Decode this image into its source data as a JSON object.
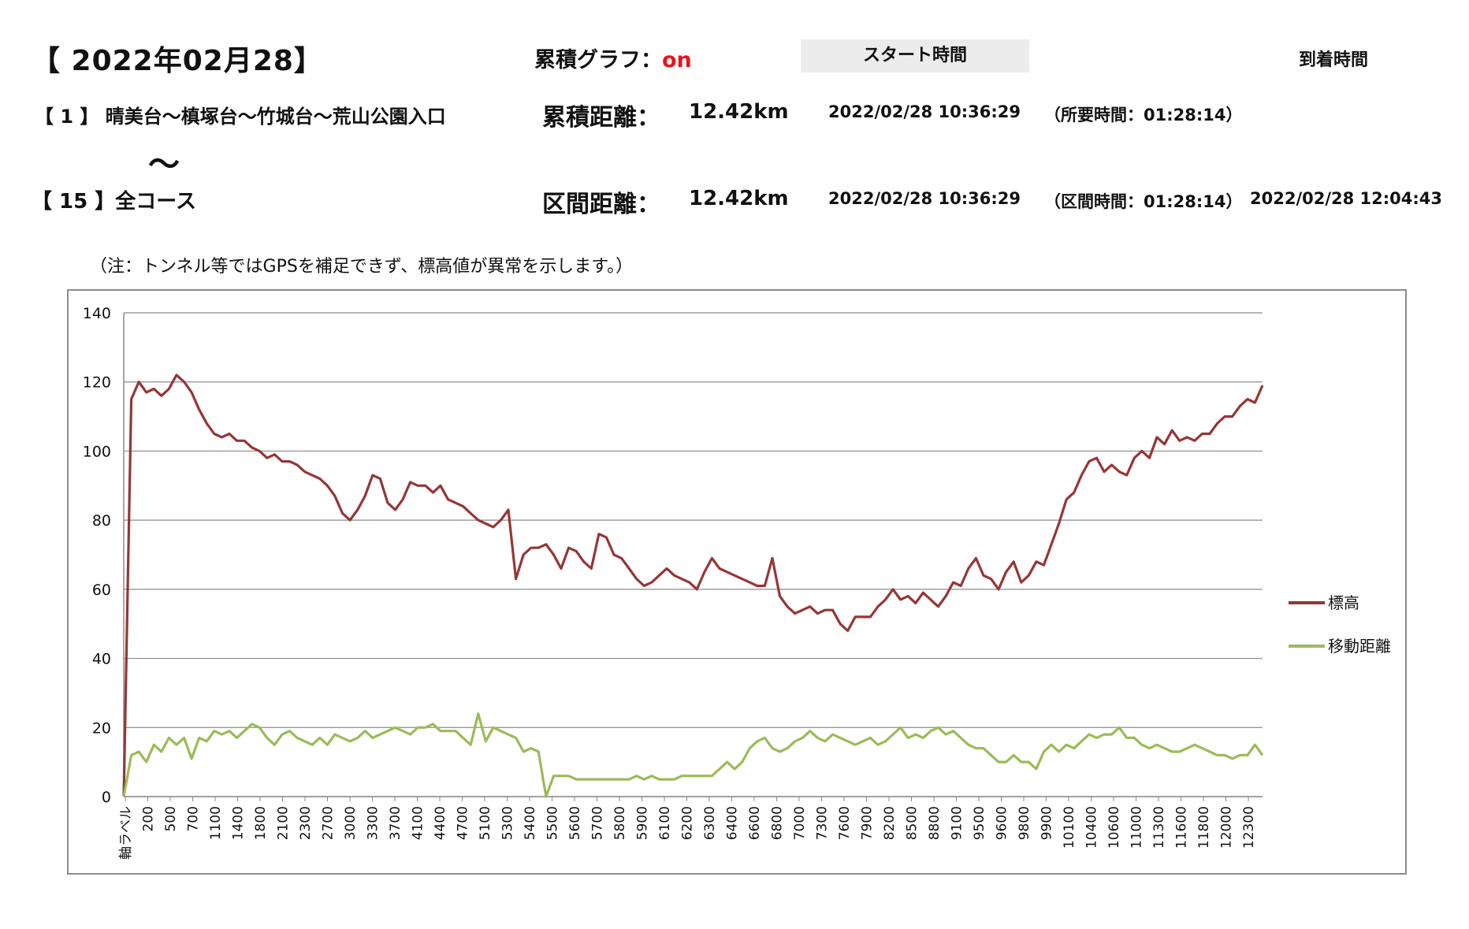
{
  "header": {
    "title": "【 2022年02月28】",
    "cumulative_label": "累積グラフ：",
    "cumulative_state": "on",
    "start_time_header": "スタート時間",
    "arrival_time_header": "到着時間"
  },
  "row1": {
    "course": "【 1 】 晴美台～槙塚台～竹城台～荒山公園入口",
    "distance_label": "累積距離：",
    "distance": "12.42km",
    "start": "2022/02/28 10:36:29",
    "duration": "（所要時間：01:28:14）"
  },
  "tilde": "～",
  "row2": {
    "course": "【 15 】全コース",
    "distance_label": "区間距離：",
    "distance": "12.42km",
    "start": "2022/02/28 10:36:29",
    "duration": "（区間時間：01:28:14）",
    "arrival": "2022/02/28 12:04:43"
  },
  "note": "（注：トンネル等ではGPSを補足できず、標高値が異常を示します。）",
  "colors": {
    "elevation": "#953735",
    "movement": "#9bbb59",
    "grid": "#8c8c8c",
    "on": "#e8141b"
  },
  "chart_data": {
    "type": "line",
    "ylim": [
      0,
      140
    ],
    "yticks": [
      0,
      20,
      40,
      60,
      80,
      100,
      120,
      140
    ],
    "x_tick_labels": [
      "軸ラベル",
      "200",
      "500",
      "700",
      "1100",
      "1400",
      "1800",
      "2100",
      "2300",
      "2700",
      "3000",
      "3300",
      "3700",
      "4100",
      "4400",
      "4700",
      "5100",
      "5300",
      "5400",
      "5500",
      "5600",
      "5700",
      "5800",
      "5900",
      "6100",
      "6200",
      "6300",
      "6400",
      "6600",
      "6800",
      "7000",
      "7300",
      "7600",
      "7900",
      "8200",
      "8500",
      "8800",
      "9100",
      "9500",
      "9600",
      "9800",
      "9900",
      "10100",
      "10400",
      "10600",
      "11000",
      "11300",
      "11600",
      "11800",
      "12000",
      "12300"
    ],
    "legend_position": "right",
    "grid": true,
    "series": [
      {
        "name": "標高",
        "values": [
          0,
          115,
          120,
          117,
          118,
          116,
          118,
          122,
          120,
          117,
          112,
          108,
          105,
          104,
          105,
          103,
          103,
          101,
          100,
          98,
          99,
          97,
          97,
          96,
          94,
          93,
          92,
          90,
          87,
          82,
          80,
          83,
          87,
          93,
          92,
          85,
          83,
          86,
          91,
          90,
          90,
          88,
          90,
          86,
          85,
          84,
          82,
          80,
          79,
          78,
          80,
          83,
          63,
          70,
          72,
          72,
          73,
          70,
          66,
          72,
          71,
          68,
          66,
          76,
          75,
          70,
          69,
          66,
          63,
          61,
          62,
          64,
          66,
          64,
          63,
          62,
          60,
          65,
          69,
          66,
          65,
          64,
          63,
          62,
          61,
          61,
          69,
          58,
          55,
          53,
          54,
          55,
          53,
          54,
          54,
          50,
          48,
          52,
          52,
          52,
          55,
          57,
          60,
          57,
          58,
          56,
          59,
          57,
          55,
          58,
          62,
          61,
          66,
          69,
          64,
          63,
          60,
          65,
          68,
          62,
          64,
          68,
          67,
          73,
          79,
          86,
          88,
          93,
          97,
          98,
          94,
          96,
          94,
          93,
          98,
          100,
          98,
          104,
          102,
          106,
          103,
          104,
          103,
          105,
          105,
          108,
          110,
          110,
          113,
          115,
          114,
          119
        ]
      },
      {
        "name": "移動距離",
        "values": [
          0,
          12,
          13,
          10,
          15,
          13,
          17,
          15,
          17,
          11,
          17,
          16,
          19,
          18,
          19,
          17,
          19,
          21,
          20,
          17,
          15,
          18,
          19,
          17,
          16,
          15,
          17,
          15,
          18,
          17,
          16,
          17,
          19,
          17,
          18,
          19,
          20,
          19,
          18,
          20,
          20,
          21,
          19,
          19,
          19,
          17,
          15,
          24,
          16,
          20,
          19,
          18,
          17,
          13,
          14,
          13,
          0,
          6,
          6,
          6,
          5,
          5,
          5,
          5,
          5,
          5,
          5,
          5,
          6,
          5,
          6,
          5,
          5,
          5,
          6,
          6,
          6,
          6,
          6,
          8,
          10,
          8,
          10,
          14,
          16,
          17,
          14,
          13,
          14,
          16,
          17,
          19,
          17,
          16,
          18,
          17,
          16,
          15,
          16,
          17,
          15,
          16,
          18,
          20,
          17,
          18,
          17,
          19,
          20,
          18,
          19,
          17,
          15,
          14,
          14,
          12,
          10,
          10,
          12,
          10,
          10,
          8,
          13,
          15,
          13,
          15,
          14,
          16,
          18,
          17,
          18,
          18,
          20,
          17,
          17,
          15,
          14,
          15,
          14,
          13,
          13,
          14,
          15,
          14,
          13,
          12,
          12,
          11,
          12,
          12,
          15,
          12
        ]
      }
    ]
  }
}
